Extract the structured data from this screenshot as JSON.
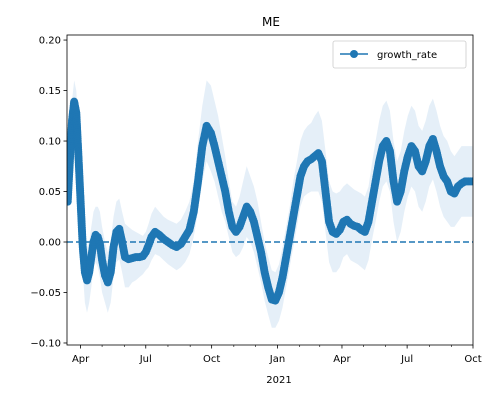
{
  "chart_data": {
    "type": "line",
    "title": "ME",
    "xlabel": "",
    "ylabel": "",
    "x_range": [
      "2020-03-13",
      "2021-10-01"
    ],
    "ylim": [
      -0.102,
      0.205
    ],
    "x_ticks": [
      {
        "date": "2020-04-01",
        "label": "Apr"
      },
      {
        "date": "2020-07-01",
        "label": "Jul"
      },
      {
        "date": "2020-10-01",
        "label": "Oct"
      },
      {
        "date": "2021-01-01",
        "label": "Jan"
      },
      {
        "date": "2021-04-01",
        "label": "Apr"
      },
      {
        "date": "2021-07-01",
        "label": "Jul"
      },
      {
        "date": "2021-10-01",
        "label": "Oct"
      }
    ],
    "x_year_label": "2021",
    "y_ticks": [
      -0.1,
      -0.05,
      0.0,
      0.05,
      0.1,
      0.15,
      0.2
    ],
    "y_tick_labels": [
      "−0.10",
      "−0.05",
      "0.00",
      "0.05",
      "0.10",
      "0.15",
      "0.20"
    ],
    "grid": false,
    "legend": {
      "position": "top-right",
      "entries": [
        "growth_rate"
      ]
    },
    "reference_line": {
      "y": 0.0,
      "style": "dashed"
    },
    "colors": {
      "line": "#1f77b4",
      "band": "#c6dbef",
      "ref": "#1f77b4"
    },
    "series": [
      {
        "name": "growth_rate",
        "x": [
          "2020-03-14",
          "2020-03-17",
          "2020-03-20",
          "2020-03-23",
          "2020-03-26",
          "2020-03-29",
          "2020-04-01",
          "2020-04-04",
          "2020-04-07",
          "2020-04-10",
          "2020-04-13",
          "2020-04-16",
          "2020-04-19",
          "2020-04-22",
          "2020-04-25",
          "2020-04-28",
          "2020-05-01",
          "2020-05-05",
          "2020-05-09",
          "2020-05-13",
          "2020-05-17",
          "2020-05-21",
          "2020-05-25",
          "2020-05-29",
          "2020-06-02",
          "2020-06-07",
          "2020-06-12",
          "2020-06-17",
          "2020-06-22",
          "2020-06-27",
          "2020-07-01",
          "2020-07-05",
          "2020-07-09",
          "2020-07-14",
          "2020-07-20",
          "2020-07-26",
          "2020-08-01",
          "2020-08-07",
          "2020-08-13",
          "2020-08-19",
          "2020-08-25",
          "2020-08-31",
          "2020-09-06",
          "2020-09-12",
          "2020-09-18",
          "2020-09-24",
          "2020-09-30",
          "2020-10-05",
          "2020-10-10",
          "2020-10-15",
          "2020-10-20",
          "2020-10-25",
          "2020-10-30",
          "2020-11-04",
          "2020-11-09",
          "2020-11-14",
          "2020-11-19",
          "2020-11-24",
          "2020-11-29",
          "2020-12-04",
          "2020-12-09",
          "2020-12-14",
          "2020-12-19",
          "2020-12-24",
          "2020-12-29",
          "2021-01-03",
          "2021-01-08",
          "2021-01-13",
          "2021-01-18",
          "2021-01-23",
          "2021-01-28",
          "2021-02-02",
          "2021-02-07",
          "2021-02-12",
          "2021-02-17",
          "2021-02-22",
          "2021-02-27",
          "2021-03-04",
          "2021-03-09",
          "2021-03-14",
          "2021-03-19",
          "2021-03-24",
          "2021-03-29",
          "2021-04-03",
          "2021-04-08",
          "2021-04-13",
          "2021-04-18",
          "2021-04-23",
          "2021-04-28",
          "2021-05-03",
          "2021-05-08",
          "2021-05-13",
          "2021-05-18",
          "2021-05-23",
          "2021-05-28",
          "2021-06-02",
          "2021-06-07",
          "2021-06-12",
          "2021-06-17",
          "2021-06-22",
          "2021-06-27",
          "2021-07-02",
          "2021-07-07",
          "2021-07-12",
          "2021-07-17",
          "2021-07-22",
          "2021-07-27",
          "2021-08-01",
          "2021-08-06",
          "2021-08-11",
          "2021-08-16",
          "2021-08-21",
          "2021-08-26",
          "2021-08-31",
          "2021-09-05",
          "2021-09-10",
          "2021-09-15",
          "2021-09-20",
          "2021-09-25",
          "2021-09-30"
        ],
        "values": [
          0.04,
          0.08,
          0.12,
          0.139,
          0.128,
          0.085,
          0.04,
          -0.005,
          -0.03,
          -0.038,
          -0.03,
          -0.015,
          0.0,
          0.007,
          0.005,
          -0.002,
          -0.018,
          -0.033,
          -0.04,
          -0.03,
          -0.005,
          0.01,
          0.013,
          0.0,
          -0.015,
          -0.017,
          -0.016,
          -0.015,
          -0.015,
          -0.014,
          -0.01,
          -0.003,
          0.005,
          0.01,
          0.007,
          0.003,
          0.0,
          -0.003,
          -0.005,
          -0.002,
          0.005,
          0.012,
          0.03,
          0.06,
          0.095,
          0.115,
          0.108,
          0.095,
          0.08,
          0.065,
          0.05,
          0.03,
          0.015,
          0.01,
          0.015,
          0.025,
          0.035,
          0.03,
          0.02,
          0.005,
          -0.01,
          -0.03,
          -0.045,
          -0.057,
          -0.058,
          -0.05,
          -0.035,
          -0.015,
          0.005,
          0.025,
          0.045,
          0.065,
          0.075,
          0.08,
          0.082,
          0.085,
          0.088,
          0.08,
          0.05,
          0.02,
          0.01,
          0.008,
          0.012,
          0.02,
          0.022,
          0.018,
          0.016,
          0.015,
          0.012,
          0.01,
          0.02,
          0.04,
          0.06,
          0.08,
          0.095,
          0.1,
          0.09,
          0.06,
          0.04,
          0.05,
          0.07,
          0.085,
          0.095,
          0.09,
          0.075,
          0.07,
          0.08,
          0.095,
          0.102,
          0.09,
          0.075,
          0.065,
          0.06,
          0.05,
          0.048,
          0.055,
          0.058,
          0.06,
          0.06,
          0.06
        ],
        "lower": [
          0.03,
          0.065,
          0.1,
          0.112,
          0.1,
          0.055,
          0.015,
          -0.03,
          -0.06,
          -0.07,
          -0.06,
          -0.045,
          -0.025,
          -0.02,
          -0.025,
          -0.035,
          -0.05,
          -0.06,
          -0.07,
          -0.06,
          -0.035,
          -0.02,
          -0.017,
          -0.03,
          -0.045,
          -0.045,
          -0.04,
          -0.038,
          -0.035,
          -0.032,
          -0.028,
          -0.025,
          -0.018,
          -0.012,
          -0.014,
          -0.018,
          -0.022,
          -0.025,
          -0.028,
          -0.025,
          -0.02,
          -0.012,
          0.005,
          0.03,
          0.06,
          0.08,
          0.07,
          0.06,
          0.045,
          0.03,
          0.02,
          0.005,
          -0.01,
          -0.015,
          -0.012,
          -0.005,
          0.005,
          0.0,
          -0.01,
          -0.025,
          -0.04,
          -0.058,
          -0.072,
          -0.085,
          -0.085,
          -0.078,
          -0.065,
          -0.045,
          -0.025,
          -0.005,
          0.015,
          0.035,
          0.045,
          0.048,
          0.05,
          0.05,
          0.05,
          0.04,
          0.01,
          -0.02,
          -0.03,
          -0.03,
          -0.025,
          -0.015,
          -0.012,
          -0.018,
          -0.02,
          -0.022,
          -0.025,
          -0.028,
          -0.018,
          0.002,
          0.02,
          0.04,
          0.055,
          0.06,
          0.05,
          0.02,
          0.0,
          0.01,
          0.03,
          0.045,
          0.055,
          0.05,
          0.035,
          0.03,
          0.04,
          0.055,
          0.062,
          0.05,
          0.035,
          0.025,
          0.02,
          0.015,
          0.015,
          0.02,
          0.025,
          0.025,
          0.025,
          0.025
        ],
        "upper": [
          0.05,
          0.095,
          0.14,
          0.16,
          0.15,
          0.11,
          0.065,
          0.02,
          0.0,
          -0.005,
          0.0,
          0.015,
          0.03,
          0.035,
          0.035,
          0.03,
          0.015,
          0.0,
          -0.01,
          0.0,
          0.025,
          0.04,
          0.043,
          0.03,
          0.018,
          0.015,
          0.012,
          0.01,
          0.008,
          0.006,
          0.01,
          0.018,
          0.028,
          0.035,
          0.03,
          0.025,
          0.022,
          0.02,
          0.018,
          0.022,
          0.03,
          0.04,
          0.06,
          0.1,
          0.135,
          0.16,
          0.155,
          0.14,
          0.125,
          0.105,
          0.085,
          0.06,
          0.04,
          0.035,
          0.045,
          0.06,
          0.075,
          0.065,
          0.055,
          0.04,
          0.02,
          0.0,
          -0.015,
          -0.028,
          -0.03,
          -0.022,
          -0.005,
          0.015,
          0.035,
          0.06,
          0.08,
          0.1,
          0.11,
          0.115,
          0.118,
          0.125,
          0.13,
          0.12,
          0.09,
          0.06,
          0.05,
          0.048,
          0.05,
          0.055,
          0.058,
          0.055,
          0.052,
          0.05,
          0.048,
          0.045,
          0.055,
          0.078,
          0.1,
          0.12,
          0.135,
          0.14,
          0.13,
          0.1,
          0.08,
          0.09,
          0.11,
          0.125,
          0.135,
          0.13,
          0.115,
          0.11,
          0.12,
          0.135,
          0.142,
          0.13,
          0.115,
          0.105,
          0.1,
          0.09,
          0.085,
          0.09,
          0.095,
          0.095,
          0.095,
          0.095
        ]
      }
    ]
  }
}
